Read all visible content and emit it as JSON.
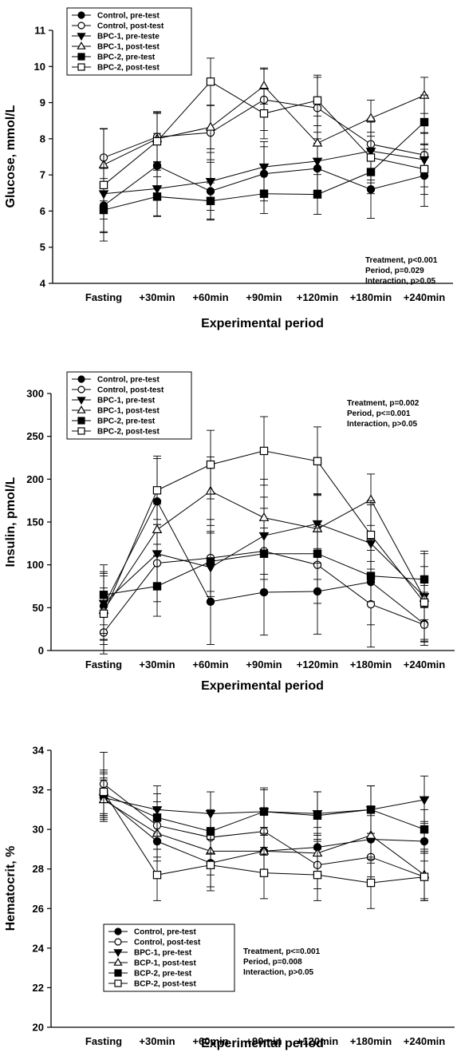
{
  "chart_data": [
    {
      "type": "line",
      "ylabel": "Glucose, mmol/L",
      "xlabel": "Experimental period",
      "categories": [
        "Fasting",
        "+30min",
        "+60min",
        "+90min",
        "+120min",
        "+180min",
        "+240min"
      ],
      "ylim": [
        4,
        11
      ],
      "yticks": [
        4,
        5,
        6,
        7,
        8,
        9,
        10,
        11
      ],
      "legend_position": "top-left",
      "series": [
        {
          "name": "Control, pre-test",
          "marker": "circle-filled",
          "values": [
            6.15,
            7.25,
            6.55,
            7.03,
            7.18,
            6.6,
            6.98
          ],
          "errors": [
            0.75,
            0.9,
            0.8,
            0.75,
            0.7,
            0.8,
            0.85
          ]
        },
        {
          "name": "Control, post-test",
          "marker": "circle-open",
          "values": [
            7.48,
            8.05,
            8.17,
            9.08,
            8.85,
            7.85,
            7.55
          ],
          "errors": [
            0.8,
            0.7,
            0.75,
            0.85,
            0.85,
            0.7,
            0.6
          ]
        },
        {
          "name": "BPC-1, pre-teste",
          "marker": "triangle-down-filled",
          "values": [
            6.48,
            6.62,
            6.82,
            7.22,
            7.38,
            7.66,
            7.42
          ],
          "errors": [
            0.7,
            0.75,
            0.8,
            0.7,
            0.8,
            0.8,
            0.75
          ]
        },
        {
          "name": "BPC-1, post-test",
          "marker": "triangle-up-open",
          "values": [
            7.28,
            8.0,
            8.32,
            9.46,
            7.88,
            8.57,
            9.2
          ],
          "errors": [
            1.0,
            0.7,
            0.6,
            0.5,
            0.75,
            0.5,
            0.5
          ]
        },
        {
          "name": "BPC-2, pre-test",
          "marker": "square-filled",
          "values": [
            6.03,
            6.4,
            6.28,
            6.48,
            6.46,
            7.08,
            8.46
          ],
          "errors": [
            0.6,
            0.55,
            0.5,
            0.55,
            0.55,
            0.6,
            0.75
          ]
        },
        {
          "name": "BPC-2, post-test",
          "marker": "square-open",
          "values": [
            6.72,
            7.93,
            9.58,
            8.7,
            9.06,
            7.48,
            7.16
          ],
          "errors": [
            1.55,
            0.8,
            0.65,
            0.7,
            0.7,
            0.7,
            0.7
          ]
        }
      ],
      "annotation": [
        "Treatment, p<0.001",
        "Period, p=0.029",
        "Interaction, p>0.05"
      ]
    },
    {
      "type": "line",
      "ylabel": "Insulin, pmol/L",
      "xlabel": "Experimental period",
      "categories": [
        "Fasting",
        "+30min",
        "+60min",
        "+90min",
        "+120min",
        "+180min",
        "+240min"
      ],
      "ylim": [
        0,
        300
      ],
      "yticks": [
        0,
        50,
        100,
        150,
        200,
        250,
        300
      ],
      "legend_position": "top-left",
      "series": [
        {
          "name": "Control, pre-test",
          "marker": "circle-filled",
          "values": [
            52,
            174,
            57,
            68,
            69,
            80,
            31
          ],
          "errors": [
            40,
            50,
            50,
            50,
            50,
            50,
            20
          ]
        },
        {
          "name": "Control, post-test",
          "marker": "circle-open",
          "values": [
            21,
            102,
            108,
            116,
            100,
            54,
            30
          ],
          "errors": [
            25,
            45,
            45,
            50,
            45,
            50,
            20
          ]
        },
        {
          "name": "BPC-1, pre-test",
          "marker": "triangle-down-filled",
          "values": [
            55,
            113,
            97,
            134,
            148,
            125,
            63
          ],
          "errors": [
            35,
            40,
            40,
            45,
            35,
            45,
            50
          ]
        },
        {
          "name": "BPC-1, post-test",
          "marker": "triangle-up-open",
          "values": [
            47,
            141,
            186,
            155,
            142,
            176,
            61
          ],
          "errors": [
            40,
            30,
            40,
            45,
            40,
            30,
            55
          ]
        },
        {
          "name": "BPC-2, pre-test",
          "marker": "square-filled",
          "values": [
            65,
            75,
            104,
            113,
            113,
            87,
            83
          ],
          "errors": [
            35,
            35,
            35,
            30,
            30,
            30,
            15
          ]
        },
        {
          "name": "BPC-2, post-test",
          "marker": "square-open",
          "values": [
            43,
            187,
            217,
            233,
            221,
            135,
            56
          ],
          "errors": [
            30,
            40,
            40,
            40,
            40,
            40,
            20
          ]
        }
      ],
      "annotation": [
        "Treatment, p=0.002",
        "Period, p<=0.001",
        "Interaction,  p>0.05"
      ]
    },
    {
      "type": "line",
      "ylabel": "Hematocrit, %",
      "xlabel": "Experimental period",
      "categories": [
        "Fasting",
        "+30min",
        "+60min",
        "+90min",
        "+120min",
        "+180min",
        "+240min"
      ],
      "ylim": [
        20,
        34
      ],
      "yticks": [
        20,
        22,
        24,
        26,
        28,
        30,
        32,
        34
      ],
      "legend_position": "bottom-left",
      "series": [
        {
          "name": "Control, pre-test",
          "marker": "circle-filled",
          "values": [
            31.6,
            29.4,
            28.3,
            28.9,
            29.1,
            29.5,
            29.4
          ],
          "errors": [
            1.2,
            1.0,
            1.2,
            1.2,
            1.0,
            1.2,
            1.0
          ]
        },
        {
          "name": "Control, post-test",
          "marker": "circle-open",
          "values": [
            32.3,
            30.2,
            29.6,
            29.9,
            28.2,
            28.6,
            27.6
          ],
          "errors": [
            1.6,
            1.2,
            1.2,
            1.2,
            1.2,
            1.0,
            1.2
          ]
        },
        {
          "name": "BPC-1, pre-test",
          "marker": "triangle-down-filled",
          "values": [
            31.6,
            31.0,
            30.8,
            30.9,
            30.8,
            31.0,
            31.5
          ],
          "errors": [
            1.0,
            1.2,
            1.1,
            1.2,
            1.1,
            1.2,
            1.2
          ]
        },
        {
          "name": "BCP-1, post-test",
          "marker": "triangle-up-open",
          "values": [
            31.5,
            29.8,
            28.9,
            28.9,
            28.8,
            29.7,
            27.7
          ],
          "errors": [
            1.0,
            1.2,
            1.2,
            1.2,
            1.0,
            1.2,
            1.2
          ]
        },
        {
          "name": "BCP-2, pre-test",
          "marker": "square-filled",
          "values": [
            31.8,
            30.6,
            29.9,
            30.9,
            30.7,
            31.0,
            30.0
          ],
          "errors": [
            1.1,
            1.2,
            1.1,
            1.1,
            1.2,
            1.2,
            1.0
          ]
        },
        {
          "name": "BCP-2, post-test",
          "marker": "square-open",
          "values": [
            31.9,
            27.7,
            28.2,
            27.8,
            27.7,
            27.3,
            27.6
          ],
          "errors": [
            1.1,
            1.3,
            1.3,
            1.3,
            1.3,
            1.3,
            1.2
          ]
        }
      ],
      "annotation": [
        "Treatment, p<=0.001",
        "Period, p=0.008",
        "Interaction,  p>0.05"
      ]
    }
  ]
}
